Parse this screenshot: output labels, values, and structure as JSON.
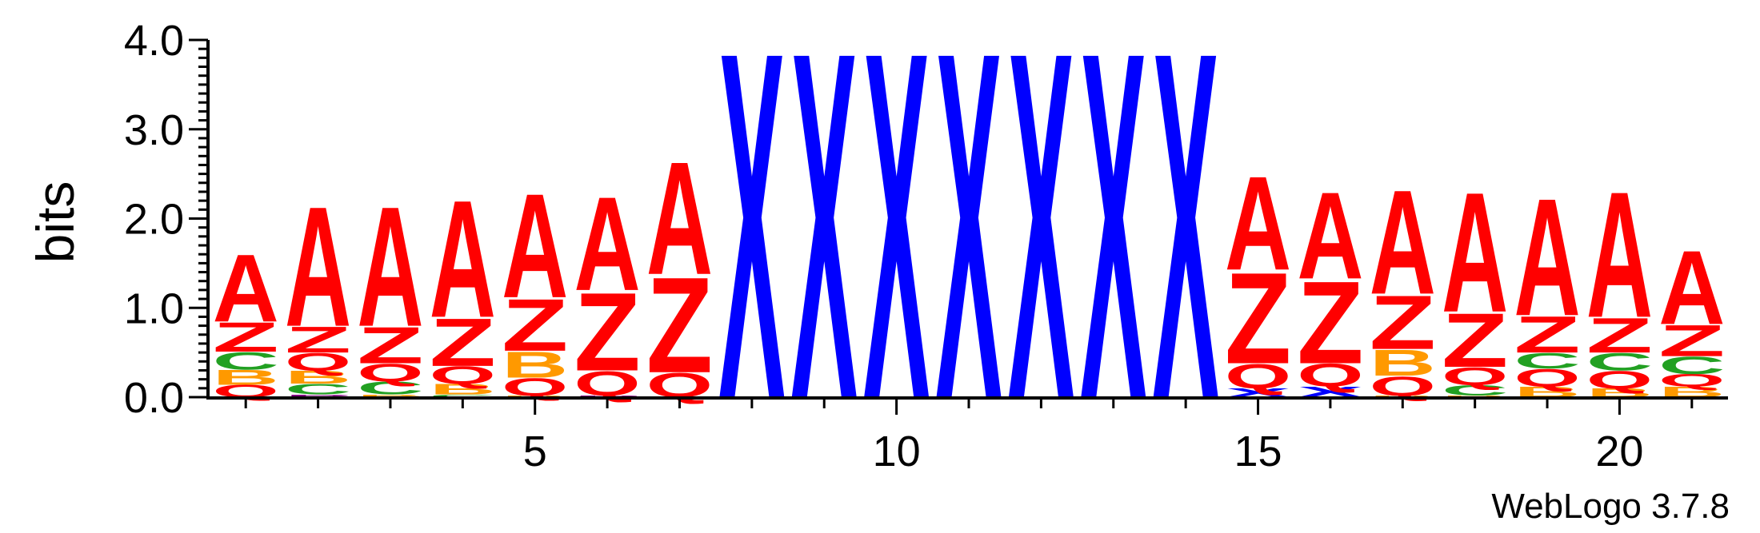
{
  "footer": {
    "version_label": "WebLogo 3.7.8"
  },
  "chart_data": {
    "type": "sequence-logo",
    "ylabel": "bits",
    "ylim": [
      0,
      4.0
    ],
    "y_ticks": [
      "0.0",
      "1.0",
      "2.0",
      "3.0",
      "4.0"
    ],
    "xlim": [
      0.5,
      21.5
    ],
    "x_ticks": [
      5,
      10,
      15,
      20
    ],
    "colors": {
      "A": "#ff0000",
      "Z": "#ff0000",
      "Q": "#ff0000",
      "X": "#0000ff",
      "C": "#22a022",
      "B": "#ff9900",
      "P": "#800080"
    },
    "positions": [
      {
        "pos": 1,
        "stack": [
          [
            "Q",
            0.14
          ],
          [
            "B",
            0.17
          ],
          [
            "C",
            0.2
          ],
          [
            "Z",
            0.34
          ],
          [
            "A",
            0.78
          ]
        ]
      },
      {
        "pos": 2,
        "stack": [
          [
            "P",
            0.03
          ],
          [
            "C",
            0.12
          ],
          [
            "B",
            0.15
          ],
          [
            "Q",
            0.2
          ],
          [
            "Z",
            0.3
          ],
          [
            "A",
            1.38
          ]
        ]
      },
      {
        "pos": 3,
        "stack": [
          [
            "B",
            0.03
          ],
          [
            "C",
            0.15
          ],
          [
            "Q",
            0.2
          ],
          [
            "Z",
            0.42
          ],
          [
            "A",
            1.38
          ]
        ]
      },
      {
        "pos": 4,
        "stack": [
          [
            "C",
            0.03
          ],
          [
            "B",
            0.12
          ],
          [
            "Q",
            0.2
          ],
          [
            "Z",
            0.55
          ],
          [
            "A",
            1.35
          ]
        ]
      },
      {
        "pos": 5,
        "stack": [
          [
            "B",
            0.02
          ],
          [
            "Q",
            0.2
          ],
          [
            "B",
            0.3
          ],
          [
            "Z",
            0.6
          ],
          [
            "A",
            1.2
          ]
        ]
      },
      {
        "pos": 6,
        "stack": [
          [
            "P",
            0.02
          ],
          [
            "Q",
            0.28
          ],
          [
            "Z",
            0.9
          ],
          [
            "A",
            1.08
          ]
        ]
      },
      {
        "pos": 7,
        "stack": [
          [
            "Q",
            0.28
          ],
          [
            "Z",
            1.1
          ],
          [
            "A",
            1.3
          ]
        ]
      },
      {
        "pos": 8,
        "stack": [
          [
            "X",
            4.0
          ]
        ]
      },
      {
        "pos": 9,
        "stack": [
          [
            "X",
            4.0
          ]
        ]
      },
      {
        "pos": 10,
        "stack": [
          [
            "X",
            4.0
          ]
        ]
      },
      {
        "pos": 11,
        "stack": [
          [
            "X",
            4.0
          ]
        ]
      },
      {
        "pos": 12,
        "stack": [
          [
            "X",
            4.0
          ]
        ]
      },
      {
        "pos": 13,
        "stack": [
          [
            "X",
            4.0
          ]
        ]
      },
      {
        "pos": 14,
        "stack": [
          [
            "X",
            4.0
          ]
        ]
      },
      {
        "pos": 15,
        "stack": [
          [
            "X",
            0.1
          ],
          [
            "Q",
            0.28
          ],
          [
            "Z",
            1.05
          ],
          [
            "A",
            1.08
          ]
        ]
      },
      {
        "pos": 16,
        "stack": [
          [
            "X",
            0.12
          ],
          [
            "Q",
            0.26
          ],
          [
            "Z",
            0.95
          ],
          [
            "A",
            1.0
          ]
        ]
      },
      {
        "pos": 17,
        "stack": [
          [
            "B",
            0.02
          ],
          [
            "Q",
            0.22
          ],
          [
            "B",
            0.3
          ],
          [
            "Z",
            0.62
          ],
          [
            "A",
            1.2
          ]
        ]
      },
      {
        "pos": 18,
        "stack": [
          [
            "B",
            0.02
          ],
          [
            "C",
            0.12
          ],
          [
            "Q",
            0.2
          ],
          [
            "Z",
            0.62
          ],
          [
            "A",
            1.38
          ]
        ]
      },
      {
        "pos": 19,
        "stack": [
          [
            "B",
            0.12
          ],
          [
            "Q",
            0.2
          ],
          [
            "C",
            0.18
          ],
          [
            "Z",
            0.42
          ],
          [
            "A",
            1.35
          ]
        ]
      },
      {
        "pos": 20,
        "stack": [
          [
            "B",
            0.1
          ],
          [
            "Q",
            0.2
          ],
          [
            "C",
            0.2
          ],
          [
            "Z",
            0.4
          ],
          [
            "A",
            1.45
          ]
        ]
      },
      {
        "pos": 21,
        "stack": [
          [
            "B",
            0.12
          ],
          [
            "Q",
            0.14
          ],
          [
            "C",
            0.2
          ],
          [
            "Z",
            0.36
          ],
          [
            "A",
            0.85
          ]
        ]
      }
    ]
  }
}
